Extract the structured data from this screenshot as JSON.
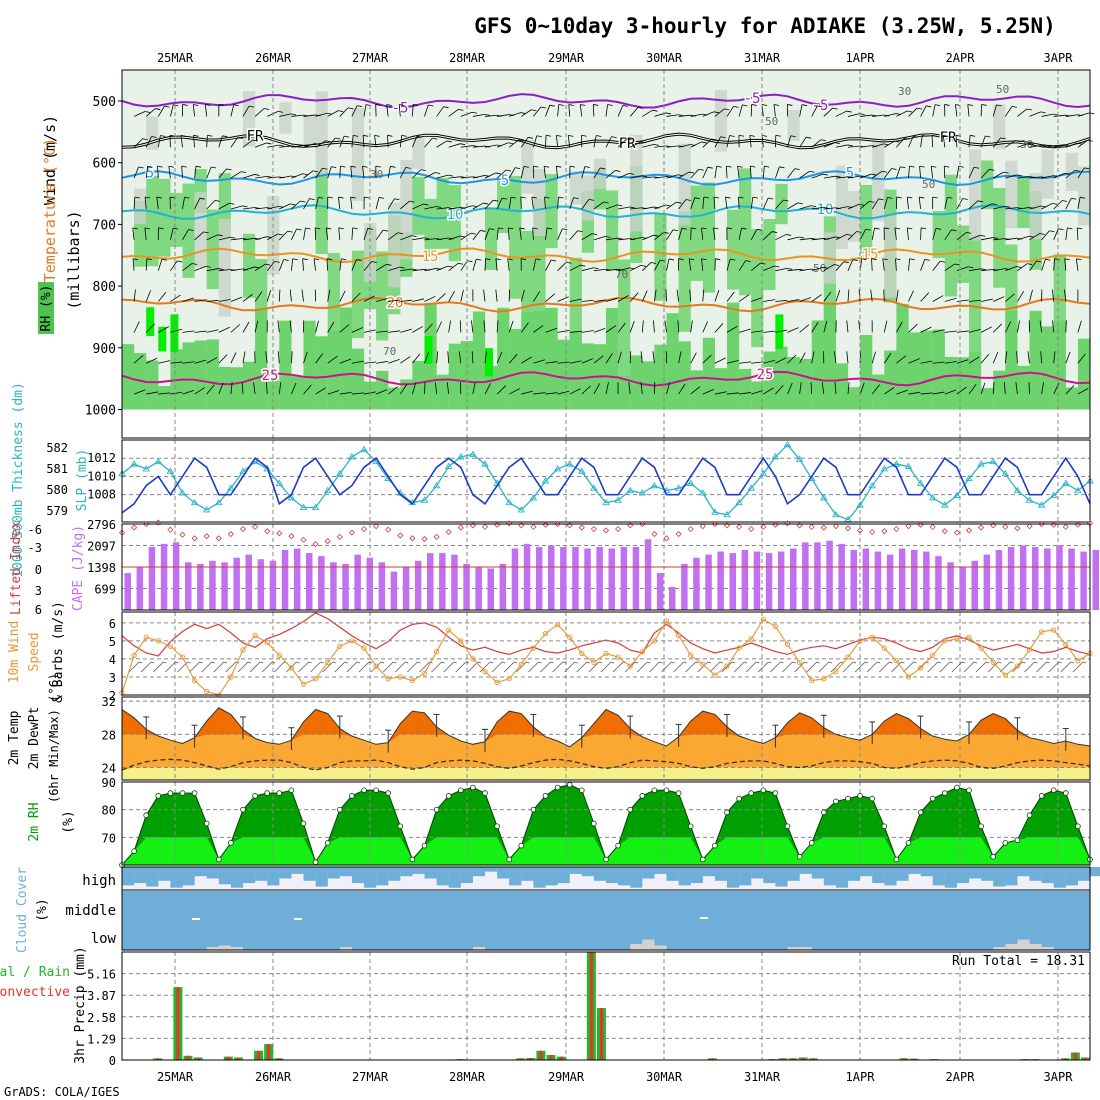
{
  "chart_data": {
    "type": "meteogram",
    "title": "GFS 0~10day 3-hourly for ADIAKE (3.25W, 5.25N)",
    "footer": "GrADS: COLA/IGES",
    "dates": [
      "25MAR",
      "26MAR",
      "27MAR",
      "28MAR",
      "29MAR",
      "30MAR",
      "31MAR",
      "1APR",
      "2APR",
      "3APR"
    ],
    "colors": {
      "rh_green": "#6dd36d",
      "rh_bright": "#00f000",
      "rh_grey": "#c8d2c8",
      "rh_pale": "#e8f2e8",
      "slp": "#1c3cc8",
      "thickness": "#28b4c8",
      "lifted": "#d23c3c",
      "cape": "#c070f0",
      "wind": "#e69632",
      "temp_fill": "#fba832",
      "temp_max": "#f06e00",
      "dew_fill": "#f5f08c",
      "rh2m_dark": "#00a000",
      "rh2m_light": "#14f014",
      "cloud": "#6eaed8",
      "cloud_bg": "#f0f0f8",
      "low_cloud": "#d2d2d2",
      "precip_total": "#28b428",
      "precip_conv": "#e63232"
    },
    "panels": {
      "upper": {
        "ylabel_rh": "RH (%)",
        "ylabel_temp": "Temperature (°C)",
        "ylabel_wind": "Wind (m/s)",
        "ylabel_mb": "(millibars)",
        "levels": [
          "500",
          "600",
          "700",
          "800",
          "900",
          "1000"
        ],
        "contour_labels": [
          "5",
          "5",
          "FR",
          "FR",
          "5",
          "5",
          "10",
          "10",
          "15",
          "15",
          "20",
          "25",
          "25",
          "30",
          "30",
          "50",
          "50",
          "70",
          "70"
        ],
        "isotherms": [
          {
            "label": "-5",
            "base_mb": 500
          },
          {
            "label": "FR",
            "base_mb": 565
          },
          {
            "label": "5",
            "base_mb": 625
          },
          {
            "label": "10",
            "base_mb": 680
          },
          {
            "label": "15",
            "base_mb": 750
          },
          {
            "label": "20",
            "base_mb": 830
          },
          {
            "label": "25",
            "base_mb": 950
          }
        ]
      },
      "slp": {
        "ylabel_thickness": "1000-500mb Thickness (dm)",
        "ylabel_slp": "SLP (mb)",
        "thickness_ticks": [
          "582",
          "581",
          "580",
          "579"
        ],
        "slp_ticks": [
          "1012",
          "1010",
          "1008"
        ],
        "slp_range": [
          1005,
          1014
        ],
        "slp_values": [
          1006,
          1007,
          1009,
          1010,
          1008,
          1010,
          1012,
          1011,
          1008,
          1008,
          1010,
          1012,
          1011,
          1007,
          1008,
          1011,
          1012,
          1010,
          1008,
          1009,
          1011,
          1012,
          1010,
          1008,
          1007,
          1009,
          1011,
          1012,
          1011,
          1008,
          1007,
          1009,
          1011,
          1012,
          1010,
          1008,
          1008,
          1010,
          1012,
          1011,
          1008,
          1008,
          1010,
          1012,
          1011,
          1008,
          1008,
          1010,
          1012,
          1011,
          1008,
          1008,
          1010,
          1012,
          1010,
          1007,
          1008,
          1010,
          1012,
          1011,
          1008,
          1008,
          1010,
          1012,
          1011,
          1008,
          1008,
          1010,
          1012,
          1011,
          1008,
          1008,
          1010,
          1012,
          1011,
          1008,
          1008,
          1010,
          1012,
          1010,
          1007
        ],
        "thickness_range": [
          578.8,
          582.2
        ],
        "thickness_values": [
          580.8,
          581.2,
          581.0,
          581.3,
          580.9,
          580.0,
          579.6,
          579.3,
          579.6,
          580.2,
          580.9,
          581.3,
          581.0,
          580.4,
          579.8,
          579.4,
          579.4,
          580.1,
          580.8,
          581.5,
          581.8,
          581.3,
          580.6,
          580.0,
          579.6,
          579.7,
          580.3,
          581.1,
          581.5,
          581.6,
          581.2,
          580.4,
          579.6,
          579.3,
          579.8,
          580.5,
          581.0,
          581.2,
          580.9,
          580.2,
          579.6,
          579.7,
          580.1,
          580.0,
          580.3,
          580.1,
          580.2,
          580.4,
          580.0,
          579.2,
          579.1,
          579.6,
          580.2,
          580.8,
          581.5,
          582.0,
          581.4,
          580.6,
          579.8,
          579.1,
          578.9,
          579.5,
          580.3,
          581.0,
          581.2,
          581.1,
          580.4,
          579.8,
          579.5,
          579.9,
          580.6,
          581.2,
          581.3,
          580.8,
          580.1,
          579.7,
          579.5,
          579.9,
          580.4,
          580.1,
          580.5
        ]
      },
      "cape": {
        "ylabel_li": "Lifted Index",
        "ylabel_cape": "CAPE (J/kg)",
        "li_ticks": [
          "-3",
          "-6",
          "0",
          "3",
          "6"
        ],
        "cape_ticks": [
          "2796",
          "2097",
          "1398",
          "699"
        ],
        "cape_max": 2796,
        "cape_values": [
          1200,
          1400,
          2050,
          2150,
          2200,
          1550,
          1500,
          1600,
          1550,
          1700,
          1800,
          1650,
          1600,
          1950,
          2000,
          1850,
          1750,
          1550,
          1500,
          1800,
          1700,
          1550,
          1250,
          1400,
          1600,
          1850,
          1850,
          1800,
          1500,
          1400,
          1350,
          1500,
          2000,
          2150,
          2050,
          2100,
          2050,
          2050,
          2000,
          2050,
          2000,
          2050,
          2050,
          2300,
          1200,
          750,
          1500,
          1700,
          1800,
          1900,
          1850,
          1950,
          1900,
          1850,
          1900,
          2000,
          2200,
          2200,
          2250,
          2150,
          1950,
          2000,
          1900,
          1800,
          2000,
          1950,
          1900,
          1750,
          1550,
          1400,
          1600,
          1800,
          1950,
          2050,
          2100,
          2050,
          2000,
          2100,
          2000,
          1900,
          1950,
          1950
        ],
        "li_values": [
          -4.8,
          -5.5,
          -6.0,
          -6.2,
          -5.2,
          -4.5,
          -4.0,
          -4.3,
          -4.0,
          -4.6,
          -5.3,
          -5.6,
          -5.0,
          -4.7,
          -4.3,
          -3.8,
          -3.2,
          -3.6,
          -4.2,
          -4.8,
          -5.3,
          -5.7,
          -5.2,
          -4.4,
          -4.0,
          -3.9,
          -4.2,
          -4.9,
          -5.5,
          -5.8,
          -5.6,
          -5.9,
          -6.1,
          -5.8,
          -5.6,
          -5.9,
          -6.0,
          -5.8,
          -5.5,
          -5.3,
          -5.1,
          -5.3,
          -5.8,
          -6.0,
          -4.6,
          -4.0,
          -4.6,
          -5.3,
          -5.7,
          -6.0,
          -5.8,
          -5.6,
          -5.3,
          -5.6,
          -5.9,
          -6.1,
          -5.8,
          -5.6,
          -5.5,
          -5.7,
          -5.4,
          -5.1,
          -4.9,
          -5.0,
          -5.3,
          -5.7,
          -5.9,
          -5.6,
          -5.0,
          -4.8,
          -5.1,
          -5.5,
          -5.8,
          -5.6,
          -5.4,
          -5.7,
          -6.0,
          -5.9,
          -5.6,
          -5.9,
          -6.1
        ]
      },
      "wind10m": {
        "ylabel": "10m Wind Speed & Barbs (m/s)",
        "ticks": [
          "6",
          "5",
          "4",
          "3",
          "2"
        ],
        "range": [
          2,
          6.6
        ],
        "values": [
          2.1,
          4.2,
          5.2,
          5.0,
          4.7,
          4.1,
          2.8,
          2.2,
          2.0,
          3.0,
          4.5,
          5.3,
          4.9,
          4.2,
          3.5,
          2.6,
          2.9,
          3.8,
          4.7,
          5.0,
          4.6,
          3.6,
          2.9,
          3.0,
          2.8,
          3.2,
          4.4,
          5.6,
          5.0,
          4.0,
          3.3,
          2.7,
          2.9,
          3.7,
          4.6,
          5.4,
          5.9,
          5.2,
          4.3,
          3.8,
          4.3,
          4.1,
          3.6,
          4.4,
          5.0,
          6.1,
          5.3,
          4.2,
          3.7,
          3.1,
          3.6,
          4.6,
          5.1,
          6.2,
          5.8,
          4.8,
          3.8,
          2.8,
          2.9,
          3.3,
          4.1,
          5.0,
          5.2,
          4.6,
          3.9,
          3.0,
          3.5,
          4.2,
          5.0,
          5.1,
          5.2,
          4.6,
          3.8,
          3.1,
          3.6,
          4.5,
          5.5,
          5.6,
          4.8,
          3.9,
          4.3
        ]
      },
      "temp2m": {
        "ylabel": "2m Temp 2m DewPt (6hr Min/Max) (°C)",
        "ticks": [
          "32",
          "28",
          "24"
        ],
        "range": [
          22.5,
          32.5
        ],
        "temp_values": [
          31.0,
          30.0,
          28.6,
          27.8,
          27.3,
          26.9,
          27.6,
          29.6,
          31.2,
          30.4,
          28.6,
          27.5,
          27.0,
          26.8,
          27.3,
          29.5,
          31.0,
          30.5,
          28.7,
          27.8,
          27.3,
          26.8,
          27.0,
          29.3,
          30.8,
          30.6,
          28.9,
          27.9,
          27.2,
          26.8,
          27.1,
          29.5,
          30.8,
          30.5,
          28.9,
          27.7,
          27.2,
          26.5,
          27.6,
          29.3,
          31.0,
          30.3,
          28.7,
          27.7,
          27.1,
          26.6,
          27.7,
          29.6,
          30.8,
          30.4,
          28.9,
          27.8,
          27.3,
          26.9,
          27.6,
          29.4,
          30.6,
          30.0,
          28.8,
          28.0,
          27.6,
          27.3,
          28.0,
          29.6,
          30.5,
          29.9,
          28.7,
          27.8,
          27.4,
          27.2,
          28.0,
          29.7,
          30.5,
          29.9,
          28.5,
          27.6,
          27.3,
          26.9,
          27.2,
          26.8,
          26.6
        ],
        "dew_values": [
          23.7,
          24.3,
          24.7,
          24.9,
          25.0,
          24.9,
          24.6,
          24.2,
          23.8,
          24.1,
          24.6,
          24.8,
          24.9,
          24.9,
          24.6,
          24.0,
          23.7,
          24.0,
          24.6,
          24.8,
          24.8,
          24.9,
          24.6,
          24.1,
          23.8,
          24.0,
          24.6,
          24.8,
          24.9,
          24.8,
          24.5,
          24.1,
          23.9,
          24.2,
          24.6,
          24.9,
          25.0,
          24.8,
          24.5,
          24.1,
          23.9,
          24.1,
          24.6,
          24.9,
          24.8,
          24.7,
          24.5,
          24.1,
          23.9,
          24.1,
          24.5,
          24.7,
          24.8,
          24.8,
          24.5,
          24.1,
          24.0,
          24.2,
          24.6,
          24.8,
          24.8,
          24.7,
          24.5,
          24.0,
          23.9,
          24.2,
          24.6,
          24.8,
          24.9,
          24.8,
          24.5,
          24.0,
          23.9,
          24.2,
          24.6,
          24.8,
          24.9,
          24.8,
          24.6,
          24.4,
          24.2
        ]
      },
      "rh2m": {
        "ylabel": "2m RH (%)",
        "ticks": [
          "90",
          "80",
          "70"
        ],
        "range": [
          60,
          90
        ],
        "values": [
          60,
          65,
          78,
          85,
          86,
          86,
          86,
          75,
          62,
          68,
          80,
          85,
          86,
          86,
          87,
          75,
          61,
          68,
          80,
          85,
          87,
          87,
          86,
          74,
          62,
          67,
          80,
          85,
          87,
          88,
          86,
          74,
          62,
          67,
          80,
          85,
          88,
          89,
          87,
          75,
          62,
          67,
          80,
          85,
          87,
          87,
          86,
          74,
          62,
          67,
          79,
          84,
          86,
          87,
          86,
          74,
          63,
          68,
          79,
          83,
          84,
          85,
          84,
          74,
          62,
          68,
          79,
          84,
          86,
          88,
          87,
          74,
          63,
          68,
          69,
          78,
          85,
          87,
          86,
          74,
          62,
          68,
          80,
          85,
          86,
          87
        ]
      },
      "cloud": {
        "ylabel": "Cloud Cover (%)",
        "row_labels": [
          "high",
          "middle",
          "low"
        ],
        "high_values": [
          80,
          70,
          85,
          60,
          90,
          80,
          40,
          50,
          75,
          90,
          70,
          60,
          80,
          50,
          30,
          60,
          85,
          50,
          40,
          70,
          90,
          80,
          60,
          40,
          30,
          50,
          80,
          90,
          70,
          40,
          20,
          50,
          80,
          60,
          90,
          80,
          70,
          30,
          40,
          60,
          70,
          80,
          90,
          50,
          30,
          60,
          80,
          70,
          40,
          60,
          90,
          80,
          50,
          70,
          85,
          60,
          30,
          50,
          80,
          90,
          60,
          40,
          70,
          80,
          60,
          30,
          40,
          80,
          90,
          70,
          50,
          60,
          85,
          80,
          40,
          60,
          70,
          90,
          80,
          60,
          40
        ],
        "middle_values": [
          100,
          100,
          100,
          95,
          100,
          100,
          100,
          96,
          100,
          100,
          100,
          100,
          100,
          100,
          100,
          100,
          100,
          100,
          100,
          100,
          100,
          100,
          100,
          100,
          100,
          100,
          100,
          100,
          100,
          100,
          96,
          100,
          100,
          100,
          100,
          100,
          100,
          100,
          100,
          100,
          100,
          100,
          100,
          100,
          100,
          100,
          100,
          100,
          96,
          100,
          100,
          100,
          100,
          100,
          100,
          100,
          100,
          100,
          100,
          100,
          100,
          100,
          100,
          100,
          100,
          100,
          100,
          100,
          100,
          100,
          100,
          100,
          100,
          100,
          100,
          100,
          100,
          100,
          100,
          100,
          100
        ],
        "low_values": [
          0,
          0,
          0,
          0,
          0,
          0,
          0,
          10,
          15,
          10,
          0,
          0,
          0,
          0,
          0,
          0,
          0,
          0,
          10,
          0,
          0,
          0,
          0,
          0,
          0,
          0,
          0,
          0,
          0,
          10,
          0,
          0,
          0,
          0,
          0,
          0,
          0,
          0,
          0,
          0,
          0,
          0,
          20,
          35,
          15,
          0,
          0,
          0,
          0,
          0,
          0,
          0,
          0,
          0,
          0,
          10,
          10,
          0,
          0,
          0,
          0,
          0,
          0,
          0,
          0,
          0,
          0,
          0,
          0,
          0,
          0,
          0,
          10,
          20,
          35,
          20,
          10,
          0,
          0,
          0,
          0
        ]
      },
      "precip": {
        "ylabel_total": "Total / Rain",
        "ylabel_conv": "Convective",
        "ylabel_3hr": "3hr Precip (mm)",
        "ticks": [
          "5.16",
          "3.87",
          "2.58",
          "1.29",
          "0"
        ],
        "max": 6.45,
        "run_total_label": "Run Total = 18.31",
        "values": [
          0,
          0,
          0,
          0.1,
          0,
          4.35,
          0.25,
          0.15,
          0,
          0,
          0.2,
          0.15,
          0,
          0.55,
          0.95,
          0.1,
          0,
          0,
          0,
          0,
          0,
          0,
          0,
          0,
          0,
          0,
          0,
          0,
          0,
          0,
          0,
          0,
          0,
          0.05,
          0,
          0,
          0,
          0,
          0,
          0.1,
          0.12,
          0.55,
          0.3,
          0.2,
          0,
          0,
          6.45,
          3.1,
          0,
          0,
          0,
          0,
          0,
          0,
          0,
          0,
          0,
          0,
          0.1,
          0,
          0,
          0,
          0,
          0,
          0.05,
          0.1,
          0.1,
          0.15,
          0.1,
          0,
          0,
          0,
          0,
          0,
          0,
          0,
          0,
          0.1,
          0.08,
          0,
          0.05,
          0,
          0,
          0,
          0,
          0,
          0,
          0,
          0,
          0.05,
          0.05,
          0,
          0,
          0.1,
          0.45,
          0.15
        ]
      }
    }
  }
}
